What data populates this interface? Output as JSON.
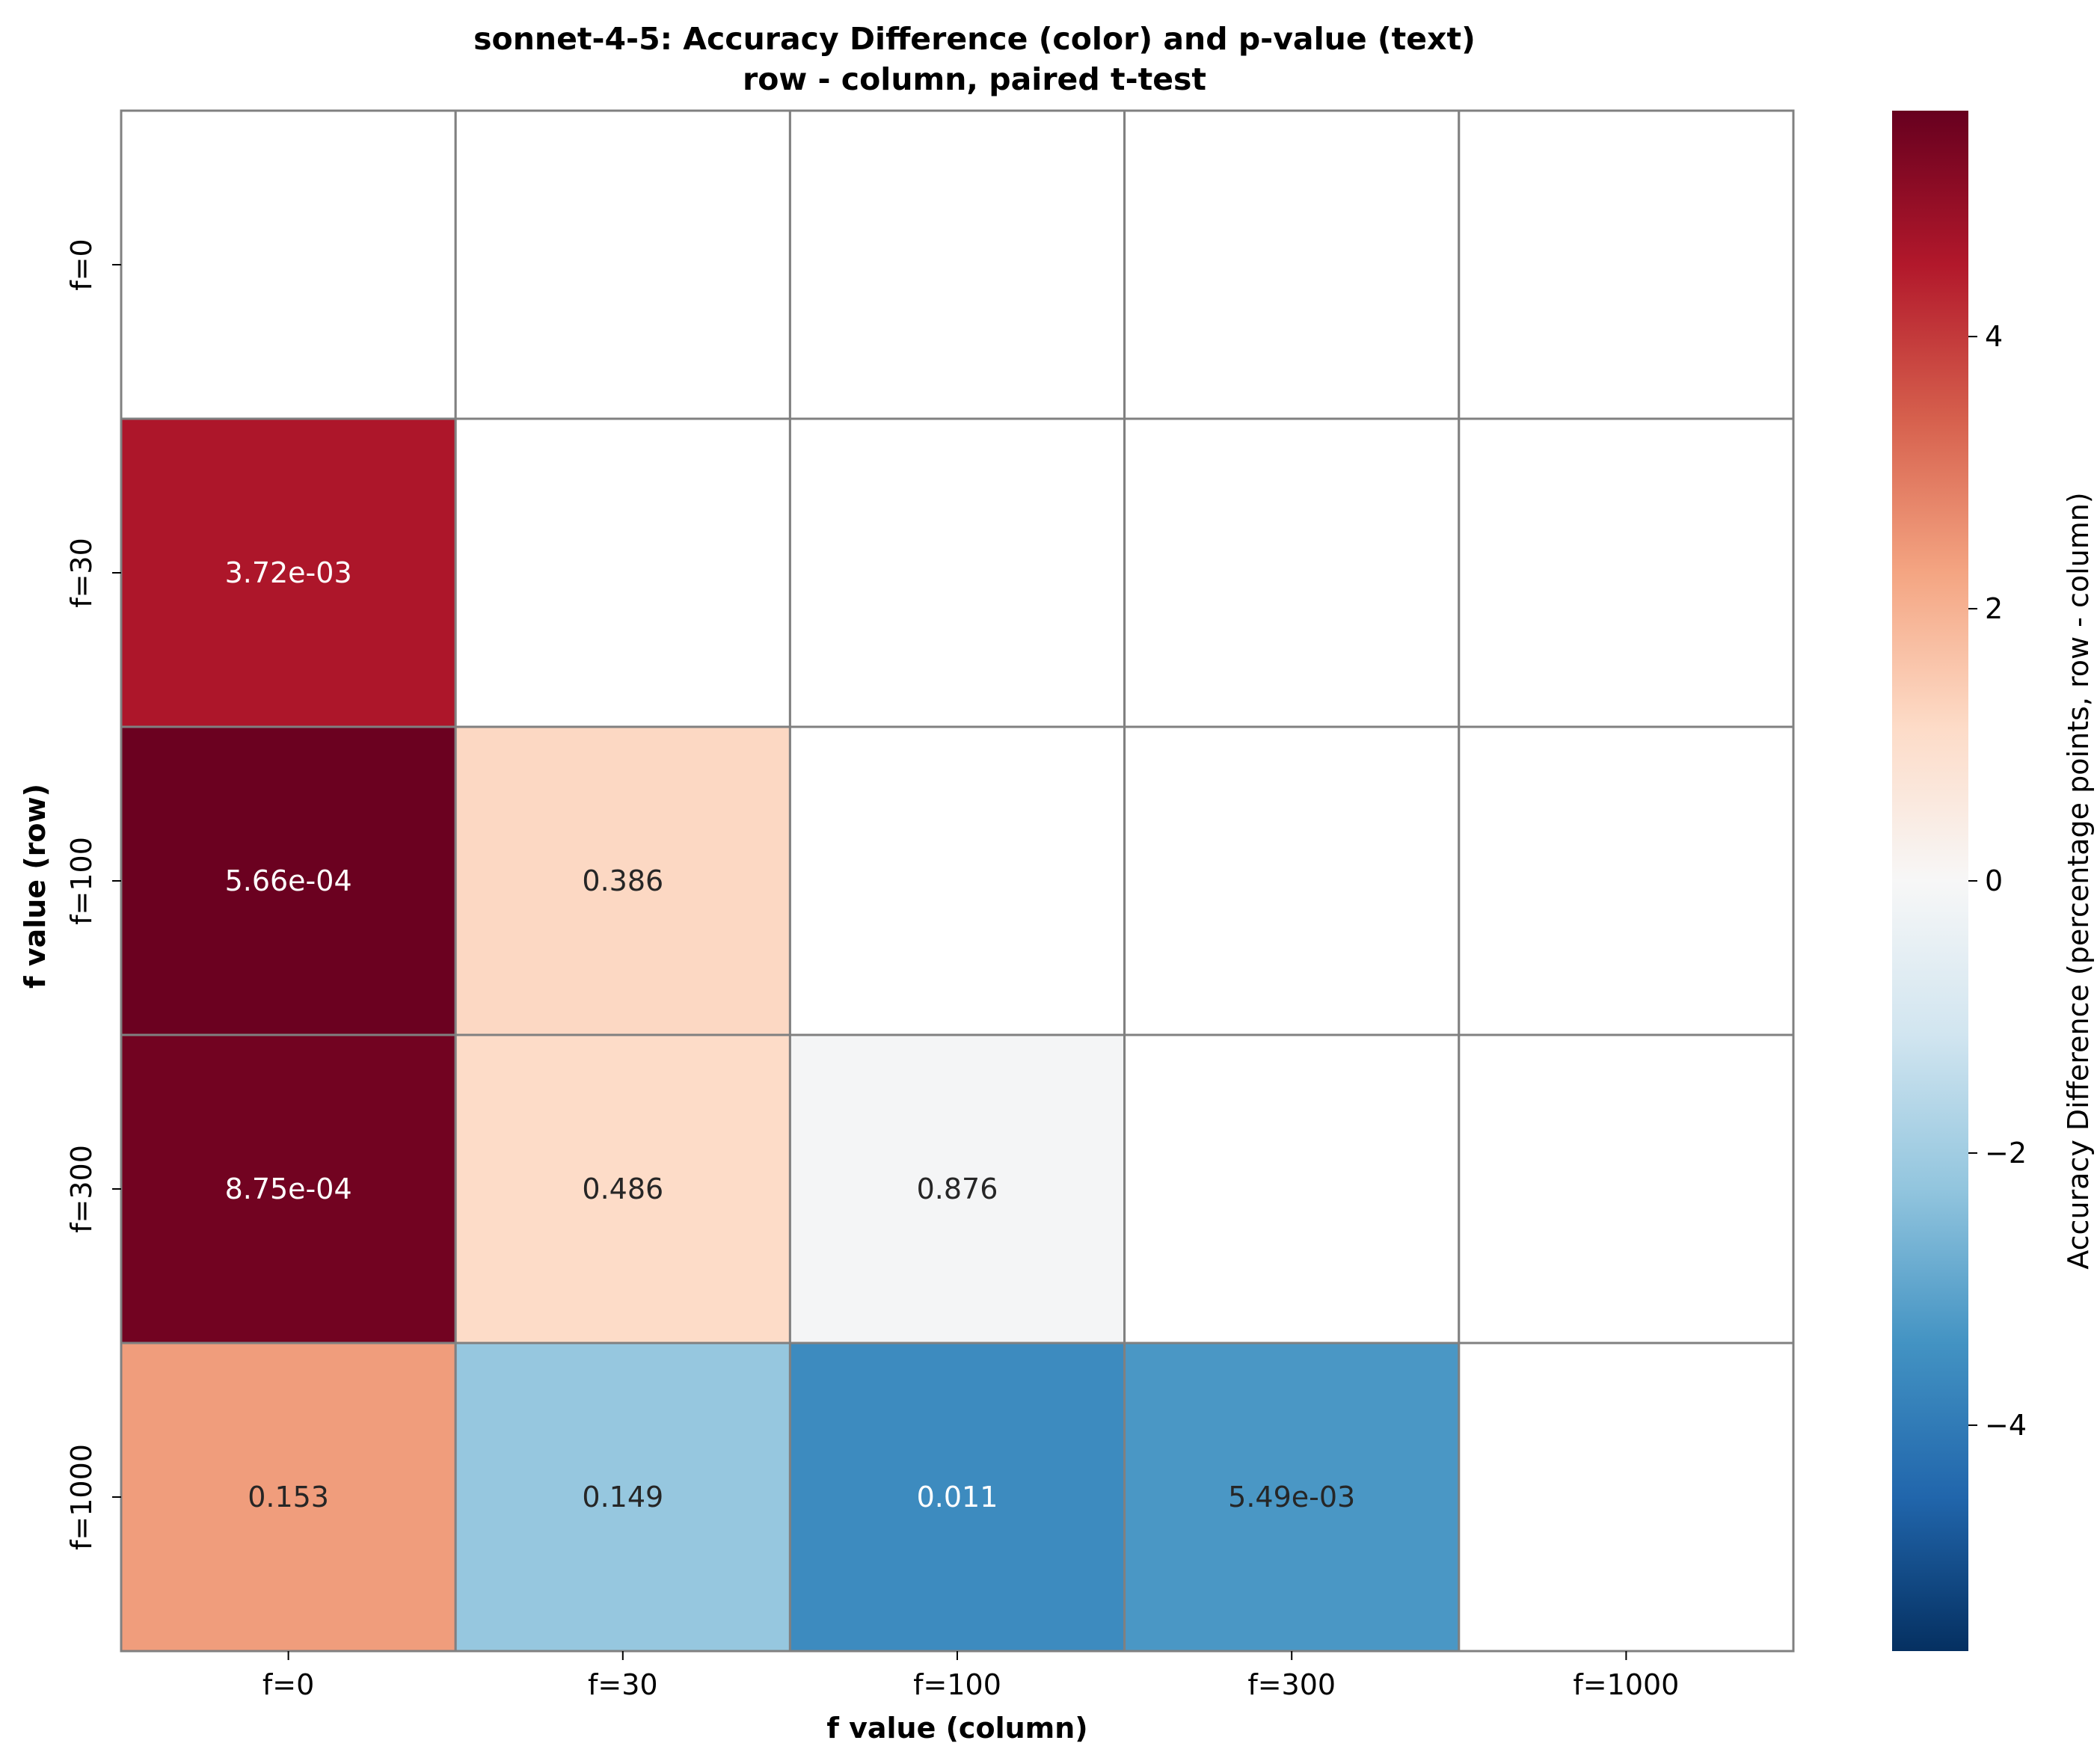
{
  "chart_data": {
    "type": "heatmap",
    "title": "sonnet-4-5: Accuracy Difference (color) and p-value (text)",
    "subtitle": "row - column, paired t-test",
    "xlabel": "f value (column)",
    "ylabel": "f value (row)",
    "columns": [
      "f=0",
      "f=30",
      "f=100",
      "f=300",
      "f=1000"
    ],
    "rows": [
      "f=0",
      "f=30",
      "f=100",
      "f=300",
      "f=1000"
    ],
    "values": [
      [
        null,
        null,
        null,
        null,
        null
      ],
      [
        4.6,
        null,
        null,
        null,
        null
      ],
      [
        5.6,
        1.2,
        null,
        null,
        null
      ],
      [
        5.5,
        1.1,
        -0.1,
        null,
        null
      ],
      [
        2.4,
        -2.2,
        -3.6,
        -3.3,
        null
      ]
    ],
    "p_values": [
      [
        null,
        null,
        null,
        null,
        null
      ],
      [
        "3.72e-03",
        null,
        null,
        null,
        null
      ],
      [
        "5.66e-04",
        "0.386",
        null,
        null,
        null
      ],
      [
        "8.75e-04",
        "0.486",
        "0.876",
        null,
        null
      ],
      [
        "0.153",
        "0.149",
        "0.011",
        "5.49e-03",
        null
      ]
    ],
    "colorbar": {
      "label": "Accuracy Difference (percentage points, row - column)",
      "vmin": -5.66,
      "vmax": 5.66,
      "ticks": [
        -4,
        -2,
        0,
        2,
        4
      ],
      "tick_labels": [
        "−4",
        "−2",
        "0",
        "2",
        "4"
      ],
      "colormap": "RdBu_r"
    },
    "grid_color": "#808080"
  }
}
